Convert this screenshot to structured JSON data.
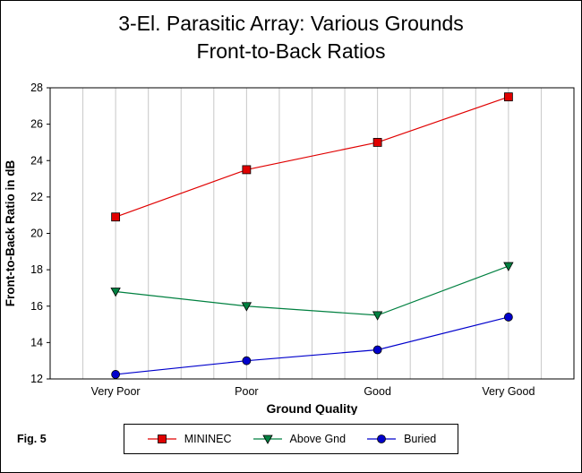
{
  "title": {
    "line1": "3-El. Parasitic Array: Various Grounds",
    "line2": "Front-to-Back Ratios"
  },
  "figure_label": "Fig. 5",
  "chart_data": {
    "type": "line",
    "title": "3-El. Parasitic Array: Various Grounds Front-to-Back Ratios",
    "xlabel": "Ground Quality",
    "ylabel": "Front-to-Back Ratio in dB",
    "categories": [
      "Very Poor",
      "Poor",
      "Good",
      "Very Good"
    ],
    "series": [
      {
        "name": "MININEC",
        "marker": "square",
        "color": "#e00000",
        "values": [
          20.9,
          23.5,
          25.0,
          27.5
        ]
      },
      {
        "name": "Above Gnd",
        "marker": "triangle-down",
        "color": "#008040",
        "values": [
          16.8,
          16.0,
          15.5,
          18.2
        ]
      },
      {
        "name": "Buried",
        "marker": "circle",
        "color": "#0000cc",
        "values": [
          12.25,
          13.0,
          13.6,
          15.4
        ]
      }
    ],
    "ylim": [
      12,
      28
    ],
    "ytick_step": 2,
    "grid": "vertical",
    "legend_position": "bottom"
  }
}
